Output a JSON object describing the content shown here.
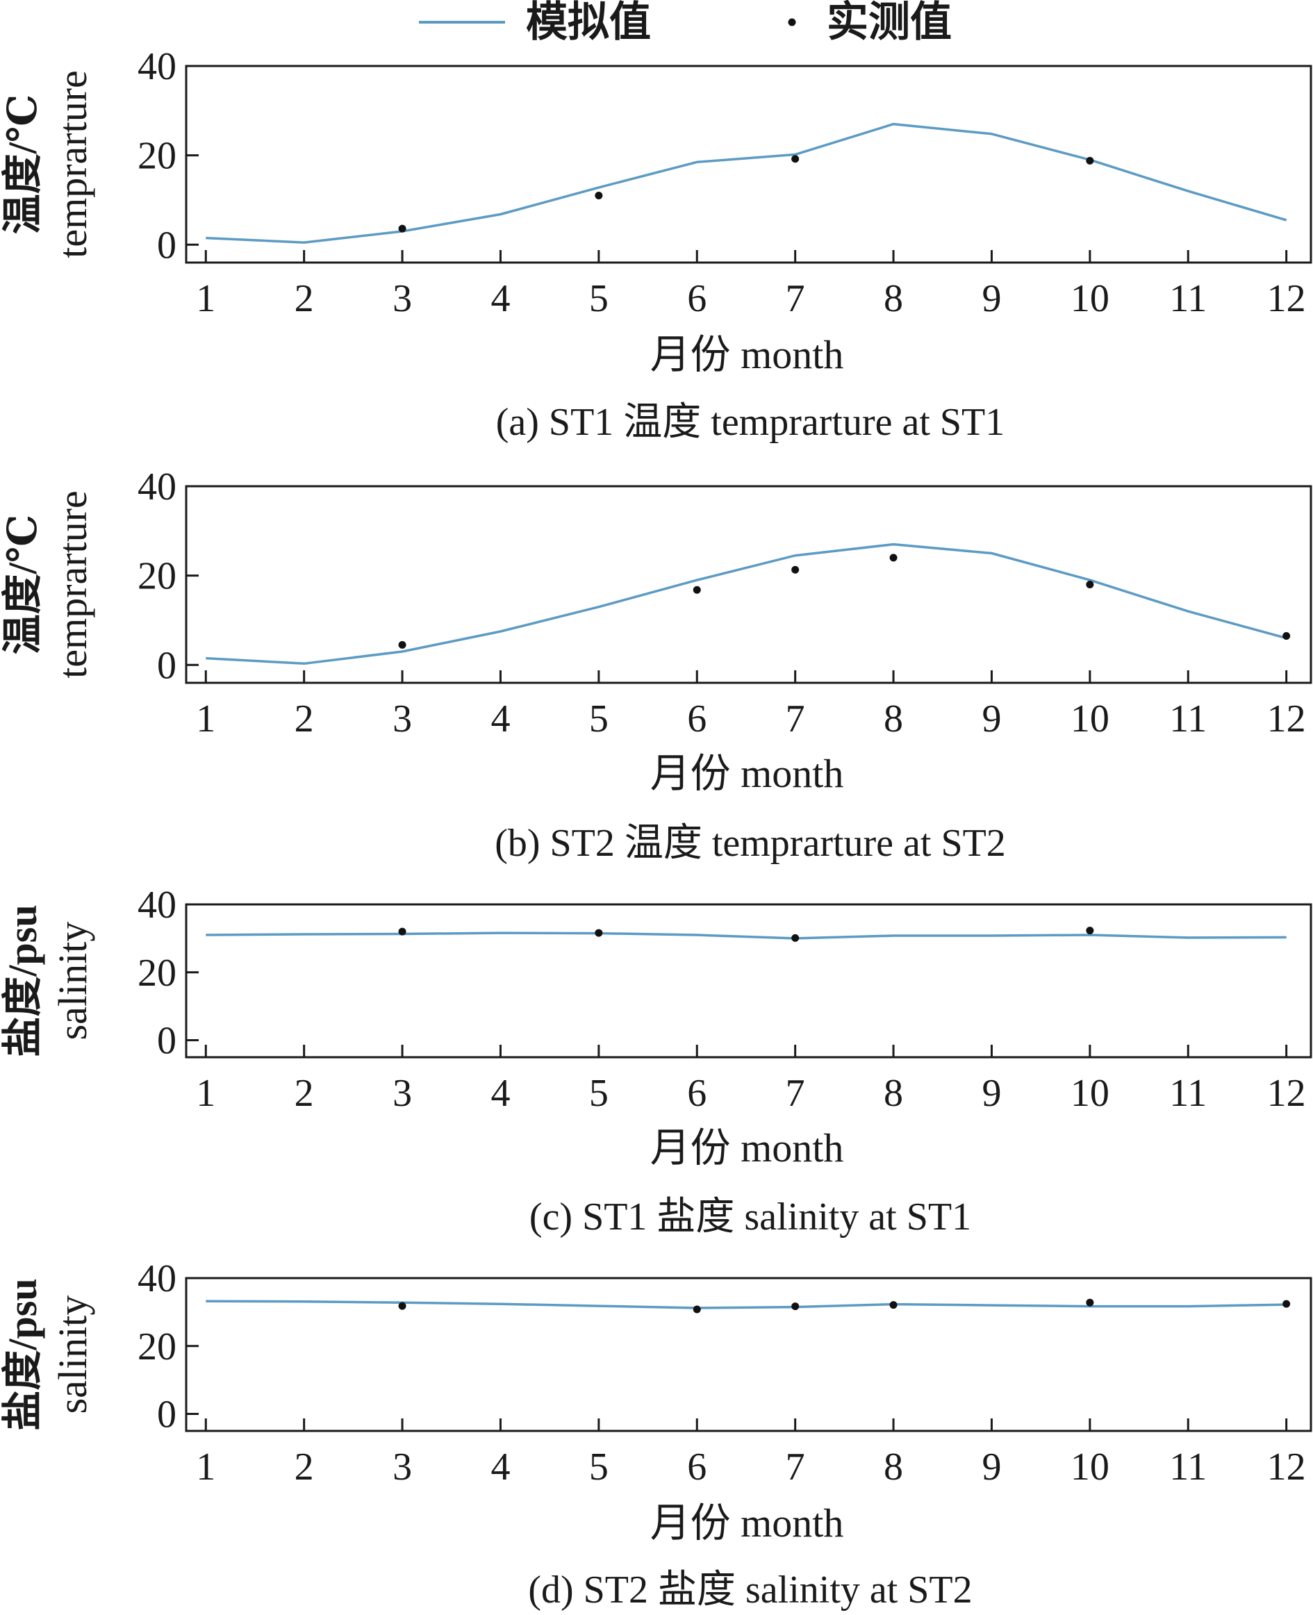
{
  "legend": {
    "simulated_label": "模拟值",
    "observed_label": "实测值"
  },
  "colors": {
    "simulated": "#5b9bc4",
    "observed": "#111111"
  },
  "chart_data": [
    {
      "type": "line",
      "ylabel_cn": "温度/℃",
      "ylabel_en": "temprarture",
      "xlabel": "月份 month",
      "caption": "(a) ST1 温度 temprarture at ST1",
      "xticks": [
        1,
        2,
        3,
        4,
        5,
        6,
        7,
        8,
        9,
        10,
        11,
        12
      ],
      "yticks": [
        0,
        20,
        40
      ],
      "xlim": [
        0.8,
        12.25
      ],
      "ylim": [
        -4,
        40
      ],
      "series": [
        {
          "name": "模拟值",
          "kind": "line",
          "x": [
            1,
            2,
            3,
            4,
            5,
            6,
            7,
            8,
            9,
            10,
            11,
            12
          ],
          "y": [
            1.5,
            0.5,
            3,
            6.8,
            12.8,
            18.5,
            20.2,
            27,
            24.8,
            19,
            12,
            5.5
          ]
        },
        {
          "name": "实测值",
          "kind": "scatter",
          "x": [
            3,
            5,
            7,
            10
          ],
          "y": [
            3.6,
            11,
            19.2,
            18.8
          ]
        }
      ]
    },
    {
      "type": "line",
      "ylabel_cn": "温度/℃",
      "ylabel_en": "temprarture",
      "xlabel": "月份 month",
      "caption": "(b) ST2 温度 temprarture at ST2",
      "xticks": [
        1,
        2,
        3,
        4,
        5,
        6,
        7,
        8,
        9,
        10,
        11,
        12
      ],
      "yticks": [
        0,
        20,
        40
      ],
      "xlim": [
        0.8,
        12.25
      ],
      "ylim": [
        -4,
        40
      ],
      "series": [
        {
          "name": "模拟值",
          "kind": "line",
          "x": [
            1,
            2,
            3,
            4,
            5,
            6,
            7,
            8,
            9,
            10,
            11,
            12
          ],
          "y": [
            1.5,
            0.3,
            3,
            7.5,
            13,
            19,
            24.5,
            27,
            25,
            19,
            12,
            6
          ]
        },
        {
          "name": "实测值",
          "kind": "scatter",
          "x": [
            3,
            6,
            7,
            8,
            10,
            12
          ],
          "y": [
            4.5,
            16.8,
            21.3,
            24,
            18,
            6.5
          ]
        }
      ]
    },
    {
      "type": "line",
      "ylabel_cn": "盐度/psu",
      "ylabel_en": "salinity",
      "xlabel": "月份 month",
      "caption": "(c) ST1 盐度 salinity at ST1",
      "xticks": [
        1,
        2,
        3,
        4,
        5,
        6,
        7,
        8,
        9,
        10,
        11,
        12
      ],
      "yticks": [
        0,
        20,
        40
      ],
      "xlim": [
        0.8,
        12.25
      ],
      "ylim": [
        -5,
        40
      ],
      "series": [
        {
          "name": "模拟值",
          "kind": "line",
          "x": [
            1,
            2,
            3,
            4,
            5,
            6,
            7,
            8,
            9,
            10,
            11,
            12
          ],
          "y": [
            31,
            31.2,
            31.3,
            31.6,
            31.5,
            31,
            30,
            30.8,
            30.8,
            31,
            30.2,
            30.3
          ]
        },
        {
          "name": "实测值",
          "kind": "scatter",
          "x": [
            3,
            5,
            7,
            10
          ],
          "y": [
            32,
            31.6,
            30.1,
            32.3
          ]
        }
      ]
    },
    {
      "type": "line",
      "ylabel_cn": "盐度/psu",
      "ylabel_en": "salinity",
      "xlabel": "月份 month",
      "caption": "(d) ST2 盐度 salinity at ST2",
      "xticks": [
        1,
        2,
        3,
        4,
        5,
        6,
        7,
        8,
        9,
        10,
        11,
        12
      ],
      "yticks": [
        0,
        20,
        40
      ],
      "xlim": [
        0.8,
        12.25
      ],
      "ylim": [
        -5,
        40
      ],
      "series": [
        {
          "name": "模拟值",
          "kind": "line",
          "x": [
            1,
            2,
            3,
            4,
            5,
            6,
            7,
            8,
            9,
            10,
            11,
            12
          ],
          "y": [
            33.2,
            33.1,
            32.8,
            32.4,
            31.8,
            31.2,
            31.5,
            32.3,
            32,
            31.7,
            31.7,
            32.2
          ]
        },
        {
          "name": "实测值",
          "kind": "scatter",
          "x": [
            3,
            6,
            7,
            8,
            10,
            12
          ],
          "y": [
            31.8,
            30.8,
            31.7,
            32.1,
            32.8,
            32.4
          ]
        }
      ]
    }
  ]
}
